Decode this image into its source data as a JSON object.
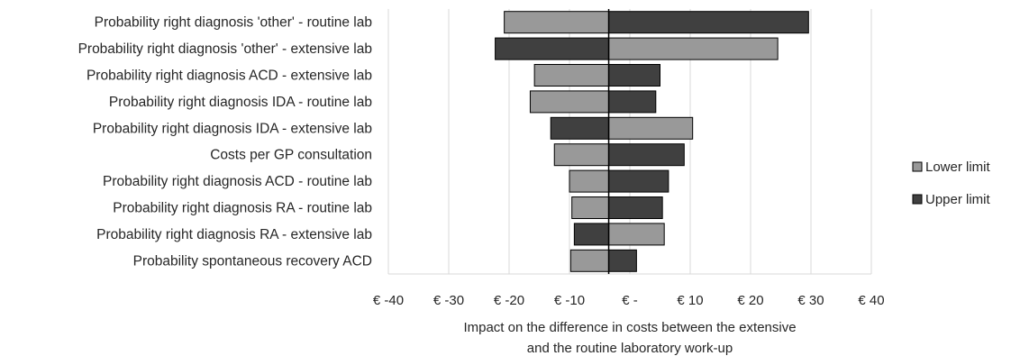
{
  "chart_data": {
    "type": "bar",
    "orientation": "horizontal",
    "style": "tornado",
    "categories": [
      "Probability right diagnosis 'other' - routine lab",
      "Probability right diagnosis 'other' - extensive lab",
      "Probability right diagnosis ACD - extensive lab",
      "Probability right diagnosis IDA - routine lab",
      "Probability right diagnosis IDA - extensive lab",
      "Costs per GP consultation",
      "Probability right diagnosis ACD - routine lab",
      "Probability right diagnosis RA - routine lab",
      "Probability right diagnosis RA - extensive lab",
      "Probability spontaneous recovery ACD"
    ],
    "series": [
      {
        "name": "Lower limit",
        "color": "#999999",
        "values": [
          -20.8,
          24.5,
          -15.8,
          -16.5,
          10.4,
          -12.5,
          -10.0,
          -9.6,
          5.7,
          -9.8
        ]
      },
      {
        "name": "Upper limit",
        "color": "#404040",
        "values": [
          29.6,
          -22.3,
          5.0,
          4.3,
          -13.1,
          9.0,
          6.4,
          5.4,
          -9.2,
          1.1
        ]
      }
    ],
    "baseline": -3.5,
    "xlim": [
      -40,
      40
    ],
    "xticks": [
      -40,
      -30,
      -20,
      -10,
      0,
      10,
      20,
      30,
      40
    ],
    "xtick_labels": [
      "€ -40",
      "€ -30",
      "€ -20",
      "€ -10",
      "€ -",
      "€ 10",
      "€ 20",
      "€ 30",
      "€ 40"
    ],
    "xlabel": "Impact on the difference in costs between the extensive and the routine laboratory work-up",
    "xlabel_lines": [
      "Impact on the difference in costs between the extensive",
      "and the routine laboratory work-up"
    ],
    "ylabel": "",
    "grid": "vertical",
    "legend": {
      "position": "right",
      "entries": [
        "Lower limit",
        "Upper limit"
      ]
    }
  }
}
